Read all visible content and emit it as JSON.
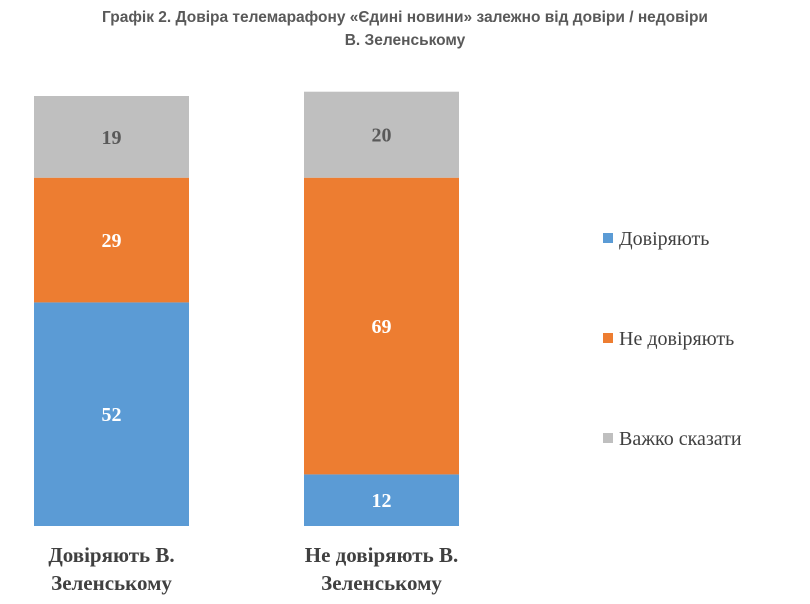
{
  "chart_data": {
    "type": "bar",
    "stacked": true,
    "title": [
      "Графік 2. Довіра телемарафону «Єдині новини» залежно від довіри / недовіри",
      "В. Зеленському"
    ],
    "categories": [
      [
        "Довіряють В.",
        "Зеленському"
      ],
      [
        "Не довіряють В.",
        "Зеленському"
      ]
    ],
    "series": [
      {
        "name": "Довіряють",
        "values": [
          52,
          12
        ],
        "color": "#5B9BD5",
        "label_color": "#ffffff"
      },
      {
        "name": "Не довіряють",
        "values": [
          29,
          69
        ],
        "color": "#ED7D31",
        "label_color": "#ffffff"
      },
      {
        "name": "Важко сказати",
        "values": [
          19,
          20
        ],
        "color": "#BFBFBF",
        "label_color": "#595959"
      }
    ],
    "ylim": [
      0,
      100
    ],
    "legend_position": "right",
    "xlabel": "",
    "ylabel": ""
  }
}
